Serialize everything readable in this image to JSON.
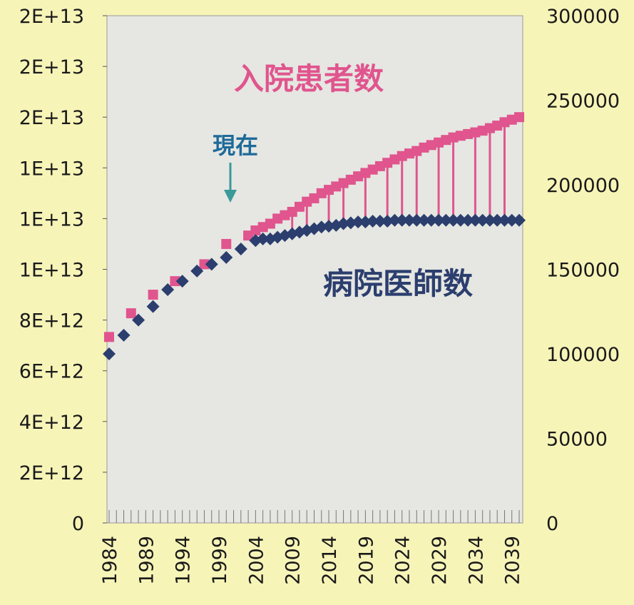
{
  "chart_data": {
    "type": "scatter",
    "x_range": [
      1984,
      2040
    ],
    "left_axis": {
      "ticks": [
        "0",
        "2E+12",
        "4E+12",
        "6E+12",
        "8E+12",
        "1E+13",
        "1E+13",
        "1E+13",
        "2E+13",
        "2E+13",
        "2E+13"
      ],
      "ylim": [
        0,
        20000000000000
      ]
    },
    "right_axis": {
      "ticks": [
        "0",
        "50000",
        "100000",
        "150000",
        "200000",
        "250000",
        "300000"
      ],
      "ylim": [
        0,
        300000
      ]
    },
    "x_tick_labels": [
      "1984",
      "1989",
      "1994",
      "1999",
      "2004",
      "2009",
      "2014",
      "2019",
      "2024",
      "2029",
      "2034",
      "2039"
    ],
    "annotations": {
      "inpatients": "入院患者数",
      "physicians": "病院医師数",
      "current": "現在"
    },
    "colors": {
      "inpatients": "#e0558e",
      "physicians": "#2b3e6e",
      "current": "#1f6a9a",
      "arrow": "#3a9a9a",
      "plot_bg": "#e6e7e2"
    },
    "series": [
      {
        "name": "入院患者数",
        "marker": "square",
        "points": [
          [
            1984,
            110000
          ],
          [
            1987,
            124000
          ],
          [
            1990,
            135000
          ],
          [
            1993,
            143000
          ],
          [
            1997,
            153000
          ],
          [
            2000,
            165000
          ],
          [
            2003,
            170000
          ],
          [
            2004,
            173000
          ],
          [
            2005,
            175000
          ],
          [
            2006,
            177000
          ],
          [
            2007,
            180000
          ],
          [
            2008,
            182000
          ],
          [
            2009,
            184000
          ],
          [
            2010,
            187000
          ],
          [
            2011,
            190000
          ],
          [
            2012,
            192000
          ],
          [
            2013,
            195000
          ],
          [
            2014,
            197000
          ],
          [
            2015,
            199000
          ],
          [
            2016,
            201000
          ],
          [
            2017,
            203000
          ],
          [
            2018,
            205000
          ],
          [
            2019,
            207000
          ],
          [
            2020,
            209000
          ],
          [
            2021,
            211000
          ],
          [
            2022,
            213000
          ],
          [
            2023,
            215000
          ],
          [
            2024,
            217000
          ],
          [
            2025,
            218500
          ],
          [
            2026,
            220000
          ],
          [
            2027,
            222000
          ],
          [
            2028,
            223500
          ],
          [
            2029,
            225000
          ],
          [
            2030,
            226500
          ],
          [
            2031,
            228000
          ],
          [
            2032,
            229000
          ],
          [
            2033,
            230000
          ],
          [
            2034,
            231000
          ],
          [
            2035,
            232000
          ],
          [
            2036,
            233500
          ],
          [
            2037,
            235000
          ],
          [
            2038,
            237000
          ],
          [
            2039,
            238500
          ],
          [
            2040,
            240000
          ]
        ]
      },
      {
        "name": "病院医師数",
        "marker": "diamond",
        "points": [
          [
            1984,
            100000
          ],
          [
            1986,
            111000
          ],
          [
            1988,
            120000
          ],
          [
            1990,
            128000
          ],
          [
            1992,
            138000
          ],
          [
            1994,
            143000
          ],
          [
            1996,
            149000
          ],
          [
            1998,
            153000
          ],
          [
            2000,
            157000
          ],
          [
            2002,
            162000
          ],
          [
            2004,
            167000
          ],
          [
            2005,
            168000
          ],
          [
            2006,
            168000
          ],
          [
            2007,
            169000
          ],
          [
            2008,
            170000
          ],
          [
            2009,
            171000
          ],
          [
            2010,
            172000
          ],
          [
            2011,
            173000
          ],
          [
            2012,
            174000
          ],
          [
            2013,
            175000
          ],
          [
            2014,
            175500
          ],
          [
            2015,
            176000
          ],
          [
            2016,
            177000
          ],
          [
            2017,
            177500
          ],
          [
            2018,
            178000
          ],
          [
            2019,
            178000
          ],
          [
            2020,
            178500
          ],
          [
            2021,
            178500
          ],
          [
            2022,
            178500
          ],
          [
            2023,
            179000
          ],
          [
            2024,
            179000
          ],
          [
            2025,
            179000
          ],
          [
            2026,
            179000
          ],
          [
            2027,
            179000
          ],
          [
            2028,
            179000
          ],
          [
            2029,
            179000
          ],
          [
            2030,
            179000
          ],
          [
            2031,
            179000
          ],
          [
            2032,
            179000
          ],
          [
            2033,
            179000
          ],
          [
            2034,
            179000
          ],
          [
            2035,
            179000
          ],
          [
            2036,
            179000
          ],
          [
            2037,
            179000
          ],
          [
            2038,
            179000
          ],
          [
            2039,
            179000
          ],
          [
            2040,
            179000
          ]
        ]
      }
    ],
    "gap_years": [
      2009,
      2011,
      2014,
      2016,
      2019,
      2022,
      2024,
      2026,
      2029,
      2031,
      2034,
      2036,
      2038
    ]
  }
}
